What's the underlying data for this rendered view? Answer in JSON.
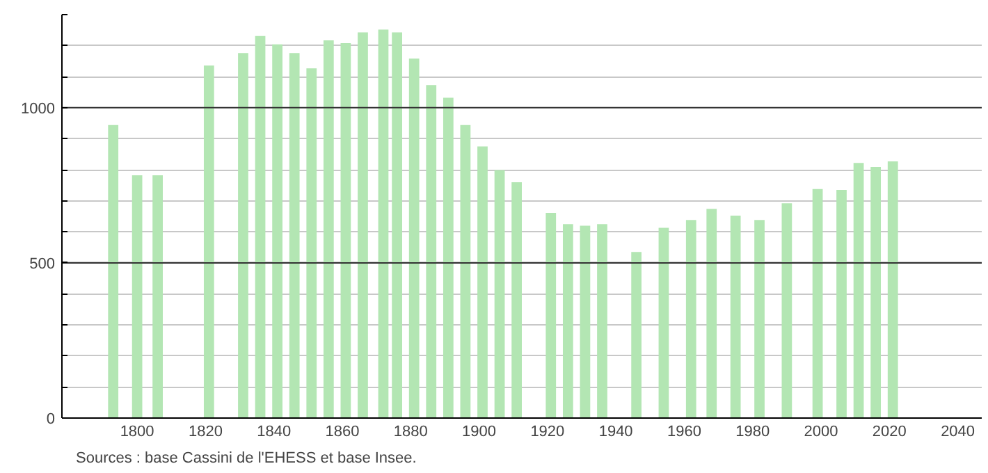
{
  "chart_data": {
    "type": "bar",
    "x": [
      1793,
      1800,
      1806,
      1821,
      1831,
      1836,
      1841,
      1846,
      1851,
      1856,
      1861,
      1866,
      1872,
      1876,
      1881,
      1886,
      1891,
      1896,
      1901,
      1906,
      1911,
      1921,
      1926,
      1931,
      1936,
      1946,
      1954,
      1962,
      1968,
      1975,
      1982,
      1990,
      1999,
      2006,
      2011,
      2016,
      2021
    ],
    "values": [
      944,
      782,
      782,
      1136,
      1176,
      1231,
      1204,
      1176,
      1127,
      1217,
      1208,
      1243,
      1252,
      1243,
      1158,
      1073,
      1032,
      944,
      875,
      799,
      760,
      661,
      625,
      620,
      625,
      535,
      613,
      638,
      674,
      652,
      638,
      692,
      738,
      735,
      822,
      809,
      827
    ],
    "color": "#b3e6b3",
    "xlim": [
      1778,
      2047
    ],
    "xticks": [
      1800,
      1820,
      1840,
      1860,
      1880,
      1900,
      1920,
      1940,
      1960,
      1980,
      2000,
      2020,
      2040
    ],
    "ylim": [
      0,
      1300
    ],
    "yticks": [
      0,
      {
        "value": 100,
        "label": null
      },
      {
        "value": 200,
        "label": null
      },
      {
        "value": 300,
        "label": null
      },
      {
        "value": 400,
        "label": null
      },
      500,
      {
        "value": 600,
        "label": null
      },
      {
        "value": 700,
        "label": null
      },
      {
        "value": 800,
        "label": null
      },
      {
        "value": 900,
        "label": null
      },
      1000,
      {
        "value": 1100,
        "label": null
      },
      {
        "value": 1200,
        "label": null
      },
      {
        "value": 1300,
        "label": null
      }
    ],
    "grid": "y",
    "annotations": [
      "Sources : base Cassini de l'EHESS et base Insee."
    ]
  }
}
